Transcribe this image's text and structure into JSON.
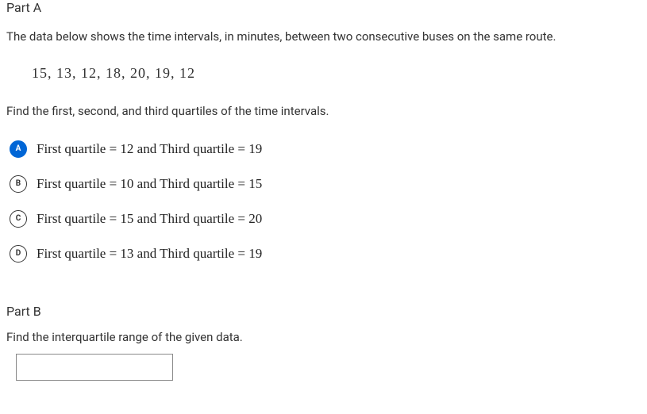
{
  "partA": {
    "label": "Part A",
    "question": "The data below shows the time intervals, in minutes, between two consecutive buses on the same route.",
    "data_values": "15,  13,  12,  18,  20,  19,  12",
    "instruction": "Find the first, second, and third quartiles of the time intervals.",
    "options": [
      {
        "letter": "A",
        "text": "First quartile = 12 and Third quartile = 19",
        "selected": true
      },
      {
        "letter": "B",
        "text": "First quartile = 10 and Third quartile = 15",
        "selected": false
      },
      {
        "letter": "C",
        "text": "First quartile = 15 and Third quartile = 20",
        "selected": false
      },
      {
        "letter": "D",
        "text": "First quartile = 13 and Third quartile = 19",
        "selected": false
      }
    ]
  },
  "partB": {
    "label": "Part B",
    "instruction": "Find the interquartile range of the given data.",
    "input_value": ""
  },
  "colors": {
    "selected_bg": "#0066d6",
    "text": "#333333",
    "border": "#888888"
  }
}
